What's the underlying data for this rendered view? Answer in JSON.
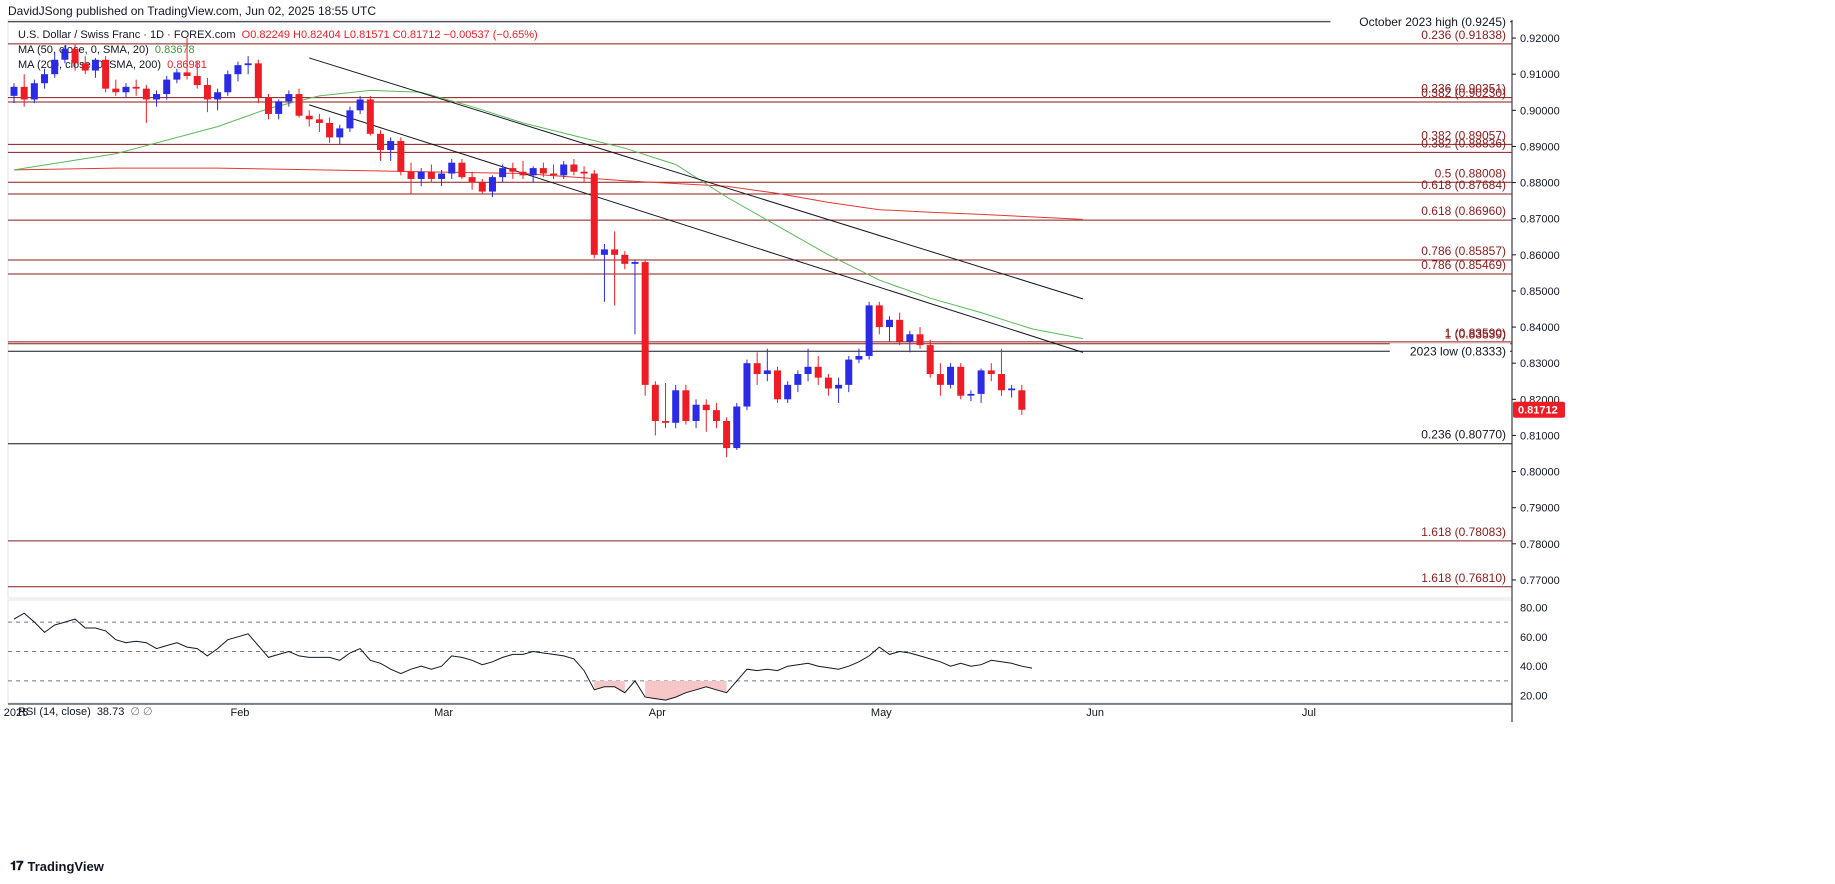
{
  "header": {
    "publisher": "DavidJSong published on TradingView.com, Jun 02, 2025 18:55 UTC"
  },
  "legend": {
    "symbol": "U.S. Dollar / Swiss Franc · 1D · FOREX.com",
    "ohlc": "O0.82249 H0.82404 L0.81571 C0.81712 −0.00537 (−0.65%)",
    "ma50_label": "MA (50, close, 0, SMA, 20)",
    "ma50_value": "0.83678",
    "ma200_label": "MA (200, close, 0, SMA, 200)",
    "ma200_value": "0.86981",
    "rsi_label": "RSI (14, close)",
    "rsi_value": "38.73",
    "rsi_extra": "∅ ∅"
  },
  "branding": {
    "logo_text": "TradingView"
  },
  "colors": {
    "up": "#2b2be6",
    "down": "#ee1c25",
    "ma50": "#5cb85c",
    "ma200": "#e53935",
    "level": "#8b1a1a",
    "rsi": "#131722",
    "oversold_fill": "#f7c6c6",
    "price_tag": "#ee1c25"
  },
  "chart_data": {
    "type": "candlestick",
    "title": "U.S. Dollar / Swiss Franc · 1D · FOREX.com",
    "y_axis": {
      "min": 0.765,
      "max": 0.925,
      "ticks": [
        "0.92000",
        "0.91000",
        "0.90000",
        "0.89000",
        "0.88000",
        "0.87000",
        "0.86000",
        "0.85000",
        "0.84000",
        "0.83000",
        "0.82000",
        "0.81000",
        "0.80000",
        "0.79000",
        "0.78000",
        "0.77000"
      ]
    },
    "x_axis": {
      "labels": [
        {
          "text": "2025",
          "day": 0
        },
        {
          "text": "Feb",
          "day": 22
        },
        {
          "text": "Mar",
          "day": 42
        },
        {
          "text": "Apr",
          "day": 63
        },
        {
          "text": "May",
          "day": 85
        },
        {
          "text": "Jun",
          "day": 106
        },
        {
          "text": "Jul",
          "day": 127
        }
      ],
      "total_days": 150
    },
    "last_price": "0.81712",
    "levels": [
      {
        "label": "October 2023 high (0.9245)",
        "value": 0.9245,
        "color": "#131722",
        "boxed": true
      },
      {
        "label": "0.236 (0.91838)",
        "value": 0.91838
      },
      {
        "label": "0.236 (0.90351)",
        "value": 0.90351
      },
      {
        "label": "0.382 (0.90230)",
        "value": 0.9023
      },
      {
        "label": "0.382 (0.89057)",
        "value": 0.89057
      },
      {
        "label": "0.382 (0.88836)",
        "value": 0.88836
      },
      {
        "label": "0.5 (0.88008)",
        "value": 0.88008
      },
      {
        "label": "0.618 (0.87684)",
        "value": 0.87684
      },
      {
        "label": "0.618 (0.86960)",
        "value": 0.8696
      },
      {
        "label": "0.786 (0.85857)",
        "value": 0.85857
      },
      {
        "label": "0.786 (0.85469)",
        "value": 0.85469
      },
      {
        "label": "1 (0.83590)",
        "value": 0.8359
      },
      {
        "label": "1 (0.83539)",
        "value": 0.83539
      },
      {
        "label": "2023 low (0.8333)",
        "value": 0.8333,
        "color": "#131722",
        "boxed": true
      },
      {
        "label": "0.236 (0.80770)",
        "value": 0.8077,
        "color": "#131722"
      },
      {
        "label": "1.618 (0.78083)",
        "value": 0.78083
      },
      {
        "label": "1.618 (0.76810)",
        "value": 0.7681
      }
    ],
    "candles": [
      [
        0.904,
        0.9075,
        0.902,
        0.9065
      ],
      [
        0.9065,
        0.91,
        0.901,
        0.903
      ],
      [
        0.903,
        0.9085,
        0.902,
        0.9075
      ],
      [
        0.9075,
        0.9115,
        0.906,
        0.91
      ],
      [
        0.91,
        0.916,
        0.909,
        0.914
      ],
      [
        0.914,
        0.918,
        0.913,
        0.917
      ],
      [
        0.917,
        0.9185,
        0.911,
        0.913
      ],
      [
        0.913,
        0.915,
        0.91,
        0.911
      ],
      [
        0.911,
        0.9145,
        0.909,
        0.914
      ],
      [
        0.914,
        0.915,
        0.905,
        0.906
      ],
      [
        0.906,
        0.9085,
        0.904,
        0.905
      ],
      [
        0.905,
        0.9075,
        0.9035,
        0.9065
      ],
      [
        0.9065,
        0.9085,
        0.904,
        0.906
      ],
      [
        0.906,
        0.907,
        0.8965,
        0.903
      ],
      [
        0.903,
        0.9055,
        0.901,
        0.9045
      ],
      [
        0.9045,
        0.9095,
        0.903,
        0.9085
      ],
      [
        0.9085,
        0.9115,
        0.9075,
        0.9105
      ],
      [
        0.9105,
        0.92,
        0.9085,
        0.9095
      ],
      [
        0.9095,
        0.9135,
        0.906,
        0.907
      ],
      [
        0.907,
        0.909,
        0.8995,
        0.903
      ],
      [
        0.903,
        0.906,
        0.9,
        0.905
      ],
      [
        0.905,
        0.911,
        0.904,
        0.91
      ],
      [
        0.91,
        0.9135,
        0.908,
        0.9125
      ],
      [
        0.9125,
        0.915,
        0.91,
        0.913
      ],
      [
        0.913,
        0.914,
        0.902,
        0.9035
      ],
      [
        0.9035,
        0.9045,
        0.8975,
        0.899
      ],
      [
        0.899,
        0.903,
        0.8975,
        0.9025
      ],
      [
        0.9025,
        0.9055,
        0.901,
        0.9045
      ],
      [
        0.9045,
        0.906,
        0.898,
        0.8985
      ],
      [
        0.8985,
        0.9,
        0.8955,
        0.8975
      ],
      [
        0.8975,
        0.899,
        0.894,
        0.8965
      ],
      [
        0.8965,
        0.898,
        0.891,
        0.8925
      ],
      [
        0.8925,
        0.896,
        0.8905,
        0.895
      ],
      [
        0.895,
        0.901,
        0.894,
        0.9
      ],
      [
        0.9,
        0.904,
        0.899,
        0.903
      ],
      [
        0.903,
        0.904,
        0.893,
        0.8935
      ],
      [
        0.8935,
        0.8945,
        0.886,
        0.889
      ],
      [
        0.889,
        0.8925,
        0.886,
        0.8915
      ],
      [
        0.8915,
        0.8925,
        0.882,
        0.883
      ],
      [
        0.883,
        0.8855,
        0.877,
        0.881
      ],
      [
        0.881,
        0.884,
        0.879,
        0.883
      ],
      [
        0.883,
        0.885,
        0.88,
        0.881
      ],
      [
        0.881,
        0.8835,
        0.879,
        0.8825
      ],
      [
        0.8825,
        0.8865,
        0.881,
        0.8855
      ],
      [
        0.8855,
        0.8865,
        0.881,
        0.8815
      ],
      [
        0.8815,
        0.883,
        0.878,
        0.88
      ],
      [
        0.88,
        0.881,
        0.877,
        0.8775
      ],
      [
        0.8775,
        0.882,
        0.876,
        0.8815
      ],
      [
        0.8815,
        0.885,
        0.88,
        0.884
      ],
      [
        0.884,
        0.8855,
        0.881,
        0.883
      ],
      [
        0.883,
        0.886,
        0.881,
        0.882
      ],
      [
        0.882,
        0.8845,
        0.88,
        0.884
      ],
      [
        0.884,
        0.8855,
        0.8815,
        0.8825
      ],
      [
        0.8825,
        0.885,
        0.881,
        0.882
      ],
      [
        0.882,
        0.886,
        0.881,
        0.885
      ],
      [
        0.885,
        0.8865,
        0.882,
        0.883
      ],
      [
        0.883,
        0.8845,
        0.88,
        0.8825
      ],
      [
        0.8825,
        0.8835,
        0.859,
        0.86
      ],
      [
        0.86,
        0.863,
        0.847,
        0.8615
      ],
      [
        0.8615,
        0.8665,
        0.846,
        0.86
      ],
      [
        0.86,
        0.861,
        0.856,
        0.8575
      ],
      [
        0.8575,
        0.8585,
        0.838,
        0.858
      ],
      [
        0.858,
        0.8585,
        0.821,
        0.824
      ],
      [
        0.824,
        0.825,
        0.81,
        0.814
      ],
      [
        0.814,
        0.8245,
        0.812,
        0.8135
      ],
      [
        0.8135,
        0.824,
        0.812,
        0.8225
      ],
      [
        0.8225,
        0.824,
        0.813,
        0.814
      ],
      [
        0.814,
        0.82,
        0.812,
        0.8185
      ],
      [
        0.8185,
        0.82,
        0.811,
        0.817
      ],
      [
        0.817,
        0.819,
        0.812,
        0.814
      ],
      [
        0.814,
        0.815,
        0.804,
        0.8065
      ],
      [
        0.8065,
        0.819,
        0.806,
        0.818
      ],
      [
        0.818,
        0.831,
        0.817,
        0.83
      ],
      [
        0.83,
        0.833,
        0.824,
        0.827
      ],
      [
        0.827,
        0.834,
        0.825,
        0.828
      ],
      [
        0.828,
        0.829,
        0.819,
        0.82
      ],
      [
        0.82,
        0.825,
        0.819,
        0.824
      ],
      [
        0.824,
        0.828,
        0.822,
        0.827
      ],
      [
        0.827,
        0.834,
        0.825,
        0.829
      ],
      [
        0.829,
        0.832,
        0.824,
        0.826
      ],
      [
        0.826,
        0.827,
        0.821,
        0.823
      ],
      [
        0.823,
        0.826,
        0.819,
        0.824
      ],
      [
        0.824,
        0.832,
        0.822,
        0.831
      ],
      [
        0.831,
        0.834,
        0.83,
        0.832
      ],
      [
        0.832,
        0.847,
        0.831,
        0.846
      ],
      [
        0.846,
        0.847,
        0.838,
        0.84
      ],
      [
        0.84,
        0.843,
        0.836,
        0.842
      ],
      [
        0.842,
        0.844,
        0.835,
        0.836
      ],
      [
        0.836,
        0.839,
        0.833,
        0.838
      ],
      [
        0.838,
        0.84,
        0.834,
        0.835
      ],
      [
        0.835,
        0.8365,
        0.826,
        0.827
      ],
      [
        0.827,
        0.83,
        0.821,
        0.824
      ],
      [
        0.824,
        0.83,
        0.823,
        0.829
      ],
      [
        0.829,
        0.83,
        0.82,
        0.821
      ],
      [
        0.821,
        0.8225,
        0.8195,
        0.8215
      ],
      [
        0.8215,
        0.8285,
        0.819,
        0.828
      ],
      [
        0.828,
        0.83,
        0.825,
        0.827
      ],
      [
        0.827,
        0.834,
        0.821,
        0.8225
      ],
      [
        0.8225,
        0.824,
        0.8205,
        0.823
      ],
      [
        0.8225,
        0.824,
        0.8157,
        0.8171
      ]
    ],
    "ma50": [
      [
        0,
        0.8835
      ],
      [
        10,
        0.888
      ],
      [
        20,
        0.8955
      ],
      [
        25,
        0.9005
      ],
      [
        30,
        0.904
      ],
      [
        35,
        0.9055
      ],
      [
        40,
        0.905
      ],
      [
        45,
        0.901
      ],
      [
        50,
        0.8965
      ],
      [
        55,
        0.893
      ],
      [
        60,
        0.8895
      ],
      [
        65,
        0.885
      ],
      [
        70,
        0.876
      ],
      [
        75,
        0.868
      ],
      [
        80,
        0.86
      ],
      [
        85,
        0.853
      ],
      [
        90,
        0.848
      ],
      [
        95,
        0.844
      ],
      [
        100,
        0.8395
      ],
      [
        105,
        0.8368
      ]
    ],
    "ma200": [
      [
        0,
        0.8835
      ],
      [
        10,
        0.884
      ],
      [
        20,
        0.884
      ],
      [
        30,
        0.8835
      ],
      [
        40,
        0.883
      ],
      [
        50,
        0.8825
      ],
      [
        60,
        0.8805
      ],
      [
        70,
        0.879
      ],
      [
        75,
        0.877
      ],
      [
        80,
        0.8745
      ],
      [
        85,
        0.8725
      ],
      [
        90,
        0.8718
      ],
      [
        95,
        0.8712
      ],
      [
        100,
        0.8705
      ],
      [
        105,
        0.8698
      ]
    ],
    "trendlines": [
      {
        "from": [
          29,
          0.9145
        ],
        "to": [
          105,
          0.8478
        ]
      },
      {
        "from": [
          29,
          0.9015
        ],
        "to": [
          105,
          0.833
        ]
      }
    ],
    "rsi": {
      "levels": [
        70,
        50,
        30
      ],
      "ticks": [
        "80.00",
        "60.00",
        "40.00",
        "20.00"
      ],
      "ylim": [
        15,
        85
      ],
      "values": [
        72,
        76,
        70,
        63,
        68,
        70,
        72,
        66,
        66,
        64,
        58,
        56,
        57,
        56,
        52,
        54,
        56,
        53,
        52,
        47,
        52,
        58,
        60,
        62,
        54,
        46,
        48,
        50,
        47,
        46,
        46,
        46,
        44,
        49,
        52,
        44,
        42,
        38,
        35,
        38,
        40,
        38,
        40,
        47,
        46,
        44,
        41,
        43,
        46,
        48,
        48,
        50,
        49,
        48,
        47,
        45,
        37,
        24,
        26,
        26,
        22,
        30,
        19,
        18,
        17,
        19,
        22,
        24,
        26,
        24,
        22,
        30,
        38,
        37,
        38,
        37,
        40,
        41,
        42,
        40,
        39,
        38,
        40,
        43,
        47,
        53,
        48,
        50,
        49,
        47,
        45,
        43,
        40,
        42,
        40,
        41,
        44,
        43,
        42,
        40,
        38.73
      ]
    }
  }
}
